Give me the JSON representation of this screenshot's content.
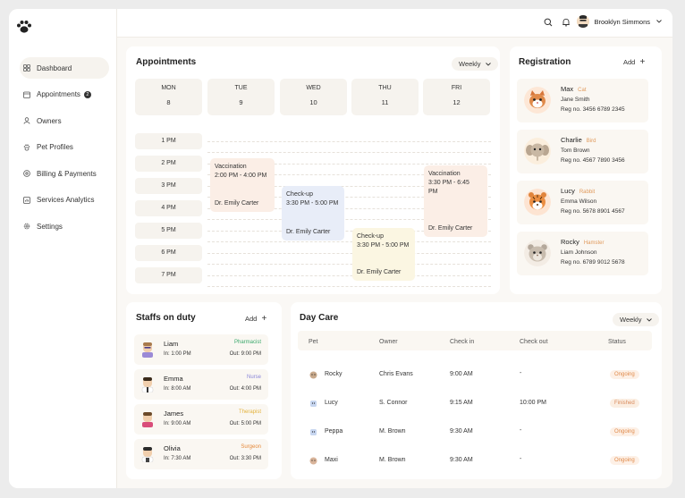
{
  "header": {
    "user_name": "Brooklyn Simmons"
  },
  "sidebar": {
    "items": [
      {
        "label": "Dashboard",
        "icon": "grid-icon"
      },
      {
        "label": "Appointments",
        "icon": "calendar-icon",
        "badge": "2"
      },
      {
        "label": "Owners",
        "icon": "user-icon"
      },
      {
        "label": "Pet Profiles",
        "icon": "paw-icon"
      },
      {
        "label": "Billing & Payments",
        "icon": "billing-icon"
      },
      {
        "label": "Services Analytics",
        "icon": "chart-icon"
      },
      {
        "label": "Settings",
        "icon": "gear-icon"
      }
    ]
  },
  "appointments": {
    "title": "Appointments",
    "view": "Weekly",
    "days": [
      {
        "name": "MON",
        "date": "8"
      },
      {
        "name": "TUE",
        "date": "9"
      },
      {
        "name": "WED",
        "date": "10"
      },
      {
        "name": "THU",
        "date": "11"
      },
      {
        "name": "FRI",
        "date": "12"
      }
    ],
    "times": [
      "1 PM",
      "2 PM",
      "3 PM",
      "4 PM",
      "5 PM",
      "6 PM",
      "7 PM"
    ],
    "events": [
      {
        "title": "Vaccination",
        "time": "2:00 PM - 4:00 PM",
        "doctor": "Dr. Emily Carter",
        "color": "#fbeee6"
      },
      {
        "title": "Check-up",
        "time": "3:30 PM - 5:00 PM",
        "doctor": "Dr. Emily Carter",
        "color": "#e8edf8"
      },
      {
        "title": "Check-up",
        "time": "3:30 PM - 5:00 PM",
        "doctor": "Dr. Emily Carter",
        "color": "#fbf6e2"
      },
      {
        "title": "Vaccination",
        "time": "3:30 PM - 6:45 PM",
        "doctor": "Dr. Emily Carter",
        "color": "#fbeee6"
      }
    ]
  },
  "registration": {
    "title": "Registration",
    "add_label": "Add",
    "items": [
      {
        "pet": "Max",
        "species": "Cat",
        "owner": "Jane Smith",
        "reg": "Reg no. 3456 6789 2345"
      },
      {
        "pet": "Charlie",
        "species": "Bird",
        "owner": "Tom Brown",
        "reg": "Reg no. 4567 7890 3456"
      },
      {
        "pet": "Lucy",
        "species": "Rabbit",
        "owner": "Emma Wilson",
        "reg": "Reg no. 5678 8901 4567"
      },
      {
        "pet": "Rocky",
        "species": "Hamster",
        "owner": "Liam Johnson",
        "reg": "Reg no. 6789 9012 5678"
      }
    ]
  },
  "staff": {
    "title": "Staffs on duty",
    "add_label": "Add",
    "items": [
      {
        "name": "Liam",
        "role": "Pharmacist",
        "role_color": "#3aa86b",
        "in": "In: 1:00 PM",
        "out": "Out: 9:00 PM"
      },
      {
        "name": "Emma",
        "role": "Nurse",
        "role_color": "#8a86d8",
        "in": "In: 8:00 AM",
        "out": "Out: 4:00 PM"
      },
      {
        "name": "James",
        "role": "Therapist",
        "role_color": "#e3b23c",
        "in": "In: 9:00 AM",
        "out": "Out: 5:00 PM"
      },
      {
        "name": "Olivia",
        "role": "Surgeon",
        "role_color": "#e58a3c",
        "in": "In: 7:30 AM",
        "out": "Out: 3:30 PM"
      }
    ]
  },
  "daycare": {
    "title": "Day Care",
    "view": "Weekly",
    "columns": [
      "Pet",
      "Owner",
      "Check in",
      "Check out",
      "Status"
    ],
    "rows": [
      {
        "pet": "Rocky",
        "owner": "Chris Evans",
        "check_in": "9:00 AM",
        "check_out": "-",
        "status": "Ongoing"
      },
      {
        "pet": "Lucy",
        "owner": "S. Connor",
        "check_in": "9:15 AM",
        "check_out": "10:00 PM",
        "status": "Finished"
      },
      {
        "pet": "Peppa",
        "owner": "M. Brown",
        "check_in": "9:30 AM",
        "check_out": "-",
        "status": "Ongoing"
      },
      {
        "pet": "Maxi",
        "owner": "M. Brown",
        "check_in": "9:30 AM",
        "check_out": "-",
        "status": "Ongoing"
      }
    ]
  }
}
